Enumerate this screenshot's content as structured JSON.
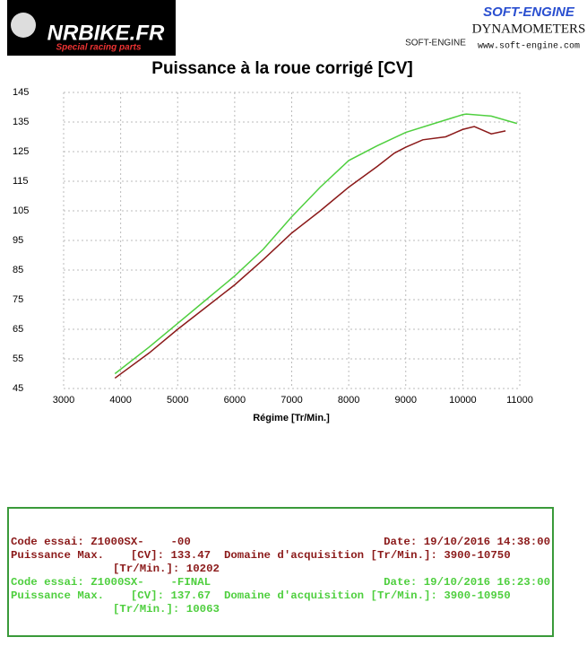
{
  "logos": {
    "left": "NRBIKE.FR",
    "left_sub": "Special racing parts",
    "right_brand": "SOFT-ENGINE",
    "right_small": "SOFT-ENGINE",
    "right_title": "DYNAMOMETERS",
    "right_url": "www.soft-engine.com"
  },
  "chart_data": {
    "type": "line",
    "title": "Puissance à la roue corrigé [CV]",
    "x_label": "Régime [Tr/Min.]",
    "xlim": [
      3000,
      11000
    ],
    "xticks": [
      3000,
      4000,
      5000,
      6000,
      7000,
      8000,
      9000,
      10000,
      11000
    ],
    "ylim": [
      45,
      145
    ],
    "yticks": [
      45,
      55,
      65,
      75,
      85,
      95,
      105,
      115,
      125,
      135,
      145
    ],
    "grid": true,
    "series": [
      {
        "name": "Z1000SX-    -00",
        "color": "#8b1a1a",
        "x": [
          3900,
          4500,
          5000,
          5500,
          6000,
          6500,
          7000,
          7500,
          8000,
          8500,
          8800,
          9000,
          9300,
          9700,
          10000,
          10202,
          10500,
          10750
        ],
        "values": [
          48.5,
          57,
          65,
          72.5,
          80,
          88.5,
          97.5,
          105,
          113,
          120,
          124.5,
          126.5,
          129,
          130,
          132.5,
          133.47,
          131,
          132
        ]
      },
      {
        "name": "Z1000SX-    -FINAL",
        "color": "#4fcf3f",
        "x": [
          3900,
          4500,
          5000,
          5500,
          6000,
          6500,
          7000,
          7500,
          8000,
          8500,
          9000,
          9500,
          10000,
          10063,
          10500,
          10950
        ],
        "values": [
          50,
          59,
          67,
          75,
          83,
          92,
          103,
          113,
          122,
          127,
          131.5,
          134.5,
          137.5,
          137.67,
          137,
          134.5
        ]
      }
    ]
  },
  "info": {
    "rows": [
      {
        "code": "Code essai: Z1000SX-    -00",
        "date": "Date: 19/10/2016 14:38:00",
        "max": "Puissance Max.    [CV]: 133.47  Domaine d'acquisition [Tr/Min.]: 3900-10750",
        "rpm": "[Tr/Min.]: 10202"
      },
      {
        "code": "Code essai: Z1000SX-    -FINAL",
        "date": "Date: 19/10/2016 16:23:00",
        "max": "Puissance Max.    [CV]: 137.67  Domaine d'acquisition [Tr/Min.]: 3900-10950",
        "rpm": "[Tr/Min.]: 10063"
      }
    ]
  }
}
